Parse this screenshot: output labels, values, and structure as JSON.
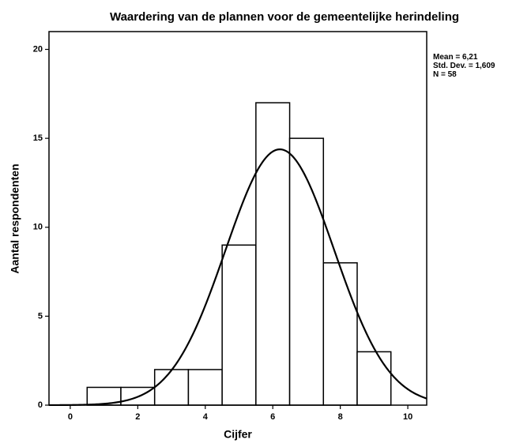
{
  "chart_data": {
    "type": "histogram",
    "title": "Waardering van de plannen voor de gemeentelijke herindeling",
    "x_label": "Cijfer",
    "y_label": "Aantal respondenten",
    "bins": [
      0.5,
      1.5,
      2.5,
      3.5,
      4.5,
      5.5,
      6.5,
      7.5,
      8.5,
      9.5
    ],
    "values": [
      1,
      1,
      2,
      2,
      9,
      17,
      15,
      8,
      3
    ],
    "color": "#ffffff",
    "edge_color": "#000000",
    "xlim": [
      -0.63,
      10.56
    ],
    "xticks": [
      0,
      2,
      4,
      6,
      8,
      10
    ],
    "ylim": [
      0,
      21
    ],
    "yticks": [
      0,
      5,
      10,
      15,
      20
    ],
    "normal_curve": {
      "mean": 6.21,
      "std": 1.609,
      "n": 58
    },
    "stats": [
      {
        "label": "Mean = 6,21",
        "value": 6.21
      },
      {
        "label": "Std. Dev. = 1,609",
        "value": 1.609
      },
      {
        "label": "N = 58",
        "value": 58
      }
    ]
  }
}
